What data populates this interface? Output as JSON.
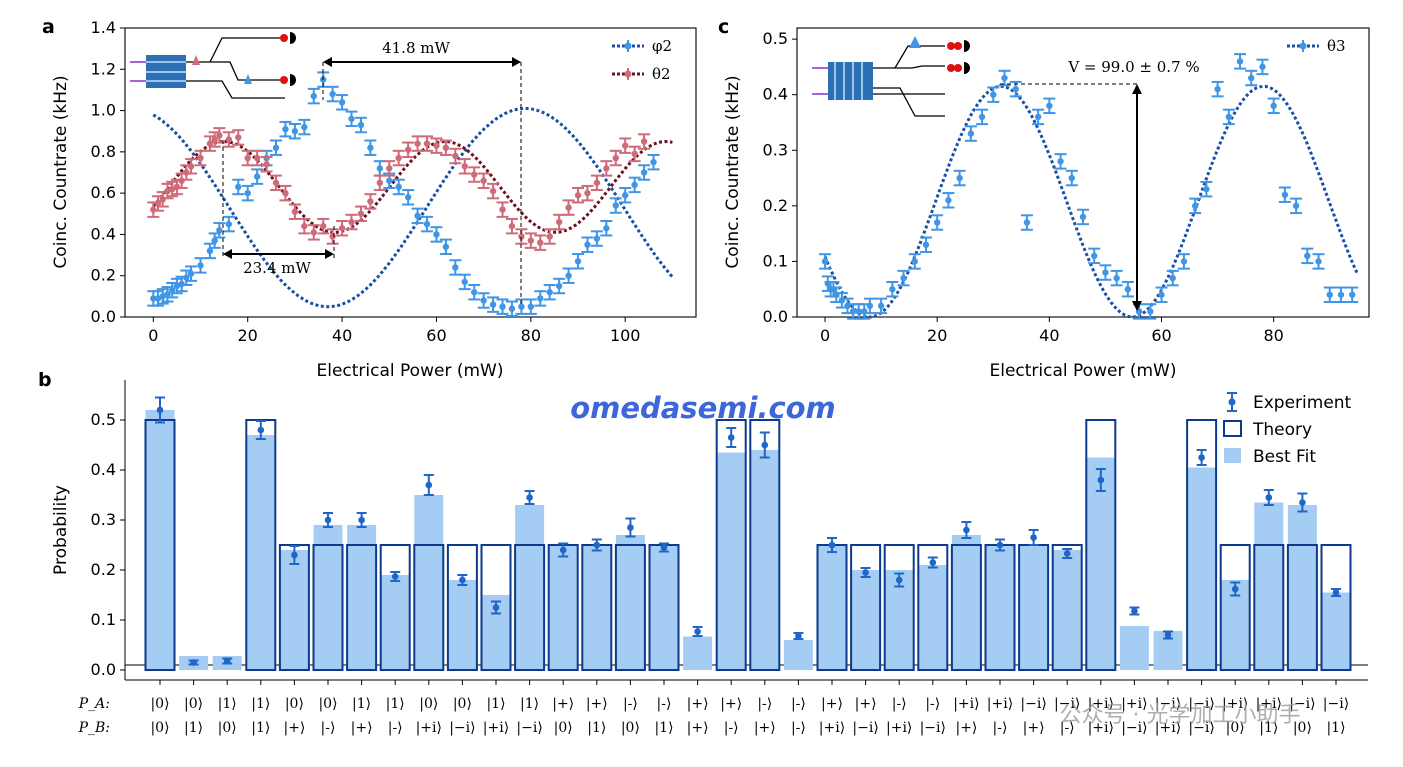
{
  "watermark": "omedasemi.com",
  "watermark2": "公众号 · 光学加工小助手",
  "chart_data": [
    {
      "panel": "a",
      "type": "scatter",
      "xlabel": "Electrical Power (mW)",
      "ylabel": "Coinc. Countrate (kHz)",
      "xlim": [
        -6,
        115
      ],
      "ylim": [
        0,
        1.4
      ],
      "xticks": [
        "0",
        "20",
        "40",
        "60",
        "80",
        "100"
      ],
      "yticks": [
        "0.0",
        "0.2",
        "0.4",
        "0.6",
        "0.8",
        "1.0",
        "1.2",
        "1.4"
      ],
      "legend_position": "top-right",
      "annotations": [
        "41.8 mW",
        "23.4 mW"
      ],
      "series": [
        {
          "name": "φ2",
          "color": "#3f95e6",
          "x": [
            0,
            1,
            2,
            3,
            4,
            5,
            6,
            7,
            8,
            10,
            12,
            13,
            14,
            16,
            18,
            20,
            22,
            24,
            26,
            28,
            30,
            32,
            34,
            36,
            38,
            40,
            42,
            44,
            46,
            48,
            50,
            52,
            54,
            56,
            58,
            60,
            62,
            64,
            66,
            68,
            70,
            72,
            74,
            76,
            78,
            80,
            82,
            84,
            86,
            88,
            90,
            92,
            94,
            96,
            98,
            100,
            102,
            104,
            106
          ],
          "y": [
            0.09,
            0.09,
            0.1,
            0.11,
            0.13,
            0.15,
            0.16,
            0.19,
            0.21,
            0.25,
            0.32,
            0.37,
            0.42,
            0.45,
            0.63,
            0.6,
            0.68,
            0.77,
            0.82,
            0.91,
            0.9,
            0.92,
            1.07,
            1.15,
            1.08,
            1.04,
            0.96,
            0.93,
            0.82,
            0.72,
            0.66,
            0.63,
            0.58,
            0.49,
            0.45,
            0.4,
            0.34,
            0.24,
            0.17,
            0.12,
            0.08,
            0.06,
            0.05,
            0.04,
            0.05,
            0.05,
            0.09,
            0.12,
            0.15,
            0.2,
            0.27,
            0.35,
            0.38,
            0.43,
            0.54,
            0.59,
            0.64,
            0.7,
            0.75
          ],
          "fit": "φ2 fit"
        },
        {
          "name": "θ2",
          "color": "#cf6a78",
          "x": [
            0,
            1,
            2,
            3,
            4,
            5,
            6,
            7,
            8,
            10,
            12,
            13,
            14,
            16,
            18,
            20,
            22,
            24,
            26,
            28,
            30,
            32,
            34,
            36,
            38,
            40,
            42,
            44,
            46,
            48,
            50,
            52,
            54,
            56,
            58,
            60,
            62,
            64,
            66,
            68,
            70,
            72,
            74,
            76,
            78,
            80,
            82,
            84,
            86,
            88,
            90,
            92,
            94,
            96,
            98,
            100,
            102,
            104
          ],
          "y": [
            0.52,
            0.55,
            0.57,
            0.61,
            0.62,
            0.63,
            0.66,
            0.7,
            0.73,
            0.77,
            0.84,
            0.86,
            0.88,
            0.86,
            0.87,
            0.77,
            0.77,
            0.74,
            0.65,
            0.6,
            0.51,
            0.44,
            0.41,
            0.44,
            0.39,
            0.43,
            0.46,
            0.5,
            0.56,
            0.65,
            0.72,
            0.77,
            0.81,
            0.84,
            0.84,
            0.83,
            0.82,
            0.78,
            0.73,
            0.69,
            0.66,
            0.61,
            0.52,
            0.44,
            0.39,
            0.37,
            0.36,
            0.39,
            0.46,
            0.53,
            0.59,
            0.6,
            0.65,
            0.72,
            0.77,
            0.83,
            0.79,
            0.85
          ]
        }
      ]
    },
    {
      "panel": "c",
      "type": "scatter",
      "xlabel": "Electrical Power (mW)",
      "ylabel": "Coinc. Countrate (kHz)",
      "xlim": [
        -5,
        97
      ],
      "ylim": [
        0,
        0.52
      ],
      "xticks": [
        "0",
        "20",
        "40",
        "60",
        "80"
      ],
      "yticks": [
        "0.0",
        "0.1",
        "0.2",
        "0.3",
        "0.4",
        "0.5"
      ],
      "legend_position": "top-right",
      "annotations": [
        "V = 99.0 ± 0.7 %"
      ],
      "series": [
        {
          "name": "θ3",
          "color": "#3f95e6",
          "x": [
            0,
            0.5,
            1,
            1.5,
            2,
            3,
            4,
            5,
            6,
            7,
            8,
            10,
            12,
            14,
            16,
            18,
            20,
            22,
            24,
            26,
            28,
            30,
            32,
            34,
            36,
            38,
            40,
            42,
            44,
            46,
            48,
            50,
            52,
            54,
            56,
            58,
            60,
            62,
            64,
            66,
            68,
            70,
            72,
            74,
            76,
            78,
            80,
            82,
            84,
            86,
            88,
            90,
            92,
            94
          ],
          "y": [
            0.1,
            0.06,
            0.05,
            0.05,
            0.04,
            0.03,
            0.02,
            0.01,
            0.01,
            0.01,
            0.02,
            0.02,
            0.05,
            0.07,
            0.1,
            0.13,
            0.17,
            0.21,
            0.25,
            0.33,
            0.36,
            0.4,
            0.43,
            0.41,
            0.17,
            0.36,
            0.38,
            0.28,
            0.25,
            0.18,
            0.11,
            0.08,
            0.07,
            0.05,
            0.01,
            0.01,
            0.04,
            0.07,
            0.1,
            0.2,
            0.23,
            0.41,
            0.36,
            0.46,
            0.43,
            0.45,
            0.38,
            0.22,
            0.2,
            0.11,
            0.1,
            0.04,
            0.04,
            0.04
          ]
        }
      ]
    },
    {
      "panel": "b",
      "type": "bar",
      "ylabel": "Probability",
      "ylim": [
        -0.02,
        0.58
      ],
      "yticks": [
        "0.0",
        "0.1",
        "0.2",
        "0.3",
        "0.4",
        "0.5"
      ],
      "legend_position": "top-right",
      "row_labels": [
        "P_A:",
        "P_B:"
      ],
      "categories_A": [
        "|0⟩",
        "|0⟩",
        "|1⟩",
        "|1⟩",
        "|0⟩",
        "|0⟩",
        "|1⟩",
        "|1⟩",
        "|0⟩",
        "|0⟩",
        "|1⟩",
        "|1⟩",
        "|+⟩",
        "|+⟩",
        "|-⟩",
        "|-⟩",
        "|+⟩",
        "|+⟩",
        "|-⟩",
        "|-⟩",
        "|+⟩",
        "|+⟩",
        "|-⟩",
        "|-⟩",
        "|+i⟩",
        "|+i⟩",
        "|−i⟩",
        "|−i⟩",
        "|+i⟩",
        "|+i⟩",
        "|−i⟩",
        "|−i⟩",
        "|+i⟩",
        "|+i⟩",
        "|−i⟩",
        "|−i⟩"
      ],
      "categories_B": [
        "|0⟩",
        "|1⟩",
        "|0⟩",
        "|1⟩",
        "|+⟩",
        "|-⟩",
        "|+⟩",
        "|-⟩",
        "|+i⟩",
        "|−i⟩",
        "|+i⟩",
        "|−i⟩",
        "|0⟩",
        "|1⟩",
        "|0⟩",
        "|1⟩",
        "|+⟩",
        "|-⟩",
        "|+⟩",
        "|-⟩",
        "|+i⟩",
        "|−i⟩",
        "|+i⟩",
        "|−i⟩",
        "|+⟩",
        "|-⟩",
        "|+⟩",
        "|-⟩",
        "|+i⟩",
        "|−i⟩",
        "|+i⟩",
        "|−i⟩",
        "|0⟩",
        "|1⟩",
        "|0⟩",
        "|1⟩"
      ],
      "series": [
        {
          "name": "Experiment",
          "color": "#1f66c8",
          "values": [
            0.52,
            0.015,
            0.018,
            0.48,
            0.23,
            0.3,
            0.3,
            0.187,
            0.37,
            0.18,
            0.125,
            0.345,
            0.24,
            0.25,
            0.285,
            0.245,
            0.077,
            0.465,
            0.45,
            0.068,
            0.25,
            0.195,
            0.18,
            0.215,
            0.28,
            0.25,
            0.265,
            0.233,
            0.38,
            0.118,
            0.07,
            0.425,
            0.162,
            0.345,
            0.335,
            0.155
          ],
          "errors": [
            0.025,
            0.004,
            0.005,
            0.018,
            0.018,
            0.014,
            0.014,
            0.009,
            0.02,
            0.01,
            0.012,
            0.013,
            0.013,
            0.011,
            0.018,
            0.008,
            0.009,
            0.019,
            0.025,
            0.006,
            0.014,
            0.009,
            0.013,
            0.01,
            0.016,
            0.011,
            0.015,
            0.009,
            0.022,
            0.007,
            0.007,
            0.015,
            0.013,
            0.015,
            0.018,
            0.007
          ]
        },
        {
          "name": "Theory",
          "color": "#0d3a8c",
          "values": [
            0.5,
            0,
            0,
            0.5,
            0.25,
            0.25,
            0.25,
            0.25,
            0.25,
            0.25,
            0.25,
            0.25,
            0.25,
            0.25,
            0.25,
            0.25,
            0,
            0.5,
            0.5,
            0,
            0.25,
            0.25,
            0.25,
            0.25,
            0.25,
            0.25,
            0.25,
            0.25,
            0.5,
            0,
            0,
            0.5,
            0.25,
            0.25,
            0.25,
            0.25
          ]
        },
        {
          "name": "Best Fit",
          "color": "#a5ccf2",
          "values": [
            0.52,
            0.028,
            0.028,
            0.47,
            0.24,
            0.29,
            0.29,
            0.19,
            0.35,
            0.18,
            0.15,
            0.33,
            0.25,
            0.25,
            0.27,
            0.25,
            0.067,
            0.435,
            0.44,
            0.06,
            0.25,
            0.2,
            0.2,
            0.21,
            0.27,
            0.25,
            0.25,
            0.24,
            0.425,
            0.088,
            0.078,
            0.405,
            0.18,
            0.335,
            0.33,
            0.155
          ]
        }
      ]
    }
  ]
}
